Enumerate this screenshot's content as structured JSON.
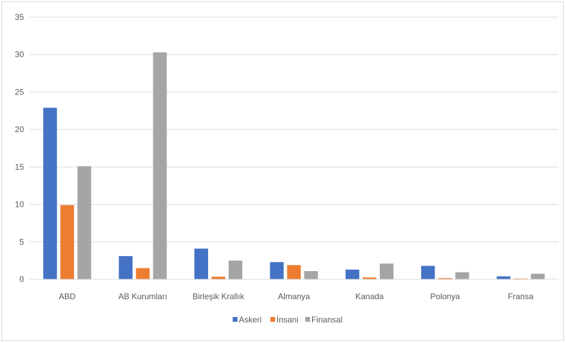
{
  "chart_data": {
    "type": "bar",
    "categories": [
      "ABD",
      "AB Kurumları",
      "Birleşik Krallık",
      "Almanya",
      "Kanada",
      "Polonya",
      "Fransa"
    ],
    "series": [
      {
        "name": "Askeri",
        "color": "#4472c4",
        "values": [
          22.9,
          3.1,
          4.1,
          2.3,
          1.3,
          1.8,
          0.4
        ]
      },
      {
        "name": "İnsani",
        "color": "#ed7d31",
        "values": [
          9.9,
          1.5,
          0.35,
          1.9,
          0.25,
          0.15,
          0.1
        ]
      },
      {
        "name": "Finansal",
        "color": "#a5a5a5",
        "values": [
          15.1,
          30.3,
          2.5,
          1.1,
          2.1,
          0.95,
          0.75
        ]
      }
    ],
    "y_ticks": [
      "0",
      "5",
      "10",
      "15",
      "20",
      "25",
      "30",
      "35"
    ],
    "ylim": [
      0,
      35
    ],
    "grid": true,
    "legend_position": "bottom"
  }
}
